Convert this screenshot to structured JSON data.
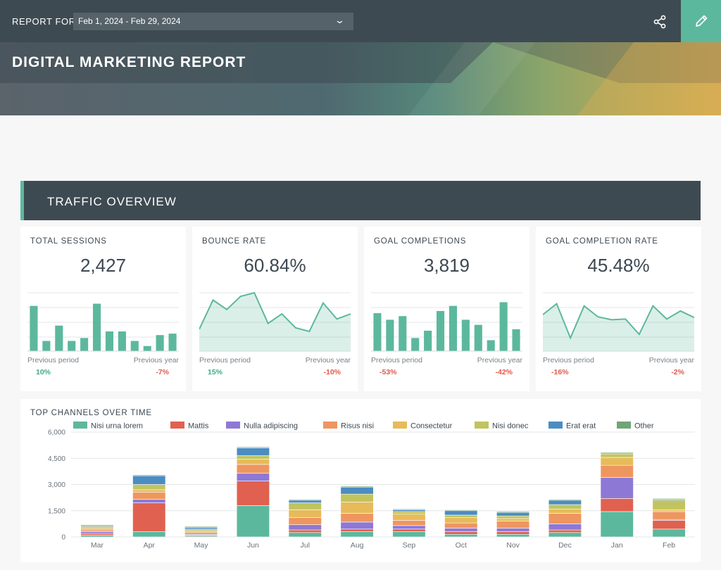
{
  "header": {
    "report_for_label": "REPORT FOR",
    "date_range": "Feb 1, 2024 - Feb 29, 2024",
    "title": "DIGITAL MARKETING REPORT"
  },
  "section": {
    "title": "TRAFFIC OVERVIEW"
  },
  "colors": {
    "accent": "#5cb89d",
    "dark": "#3e4a52",
    "positive": "#3fae84",
    "negative": "#e05a4e"
  },
  "kpis": [
    {
      "label": "TOTAL SESSIONS",
      "value": "2,427",
      "chart": "bar",
      "series": [
        62,
        14,
        35,
        14,
        18,
        65,
        27,
        27,
        14,
        7,
        22,
        24
      ],
      "prev_period_label": "Previous period",
      "prev_year_label": "Previous year",
      "prev_period": "10%",
      "prev_year": "-7%"
    },
    {
      "label": "BOUNCE RATE",
      "value": "60.84%",
      "chart": "area",
      "series": [
        30,
        70,
        57,
        75,
        80,
        38,
        51,
        32,
        27,
        66,
        44,
        51
      ],
      "prev_period_label": "Previous period",
      "prev_year_label": "Previous year",
      "prev_period": "15%",
      "prev_year": "-10%"
    },
    {
      "label": "GOAL COMPLETIONS",
      "value": "3,819",
      "chart": "bar",
      "series": [
        52,
        43,
        48,
        18,
        28,
        55,
        62,
        43,
        36,
        15,
        67,
        30
      ],
      "prev_period_label": "Previous period",
      "prev_year_label": "Previous year",
      "prev_period": "-53%",
      "prev_year": "-42%"
    },
    {
      "label": "GOAL COMPLETION RATE",
      "value": "45.48%",
      "chart": "area",
      "series": [
        50,
        65,
        18,
        62,
        47,
        43,
        44,
        23,
        62,
        44,
        55,
        46
      ],
      "prev_period_label": "Previous period",
      "prev_year_label": "Previous year",
      "prev_period": "-16%",
      "prev_year": "-2%"
    }
  ],
  "chart_data": {
    "type": "bar",
    "stacked": true,
    "title": "TOP CHANNELS OVER TIME",
    "categories": [
      "Mar",
      "Apr",
      "May",
      "Jun",
      "Jul",
      "Aug",
      "Sep",
      "Oct",
      "Nov",
      "Dec",
      "Jan",
      "Feb"
    ],
    "ylim": [
      0,
      6000
    ],
    "yticks": [
      "0",
      "1,500",
      "3,000",
      "4,500",
      "6,000"
    ],
    "legend_position": "top",
    "series": [
      {
        "name": "Nisi urna lorem",
        "color": "#5cb89d",
        "values": [
          100,
          300,
          50,
          1800,
          250,
          300,
          300,
          150,
          150,
          250,
          1450,
          450
        ]
      },
      {
        "name": "Mattis",
        "color": "#e06150",
        "values": [
          100,
          1650,
          50,
          1400,
          150,
          150,
          150,
          150,
          150,
          150,
          750,
          500
        ]
      },
      {
        "name": "Nulla adipiscing",
        "color": "#8e78d6",
        "values": [
          100,
          200,
          50,
          450,
          300,
          400,
          200,
          200,
          200,
          350,
          1200,
          50
        ]
      },
      {
        "name": "Risus nisi",
        "color": "#ee9660",
        "values": [
          100,
          400,
          100,
          500,
          400,
          500,
          300,
          300,
          400,
          600,
          700,
          450
        ]
      },
      {
        "name": "Consectetur",
        "color": "#e7bb5a",
        "values": [
          100,
          150,
          100,
          300,
          450,
          650,
          350,
          300,
          150,
          250,
          450,
          100
        ]
      },
      {
        "name": "Nisi donec",
        "color": "#c1c45e",
        "values": [
          100,
          300,
          100,
          200,
          400,
          450,
          150,
          150,
          150,
          250,
          200,
          550
        ]
      },
      {
        "name": "Erat erat",
        "color": "#4b8dc2",
        "values": [
          50,
          500,
          100,
          450,
          150,
          400,
          100,
          250,
          200,
          250,
          50,
          50
        ]
      },
      {
        "name": "Other",
        "color": "#71a575",
        "values": [
          50,
          50,
          50,
          50,
          50,
          50,
          50,
          50,
          50,
          50,
          50,
          50
        ]
      }
    ]
  }
}
